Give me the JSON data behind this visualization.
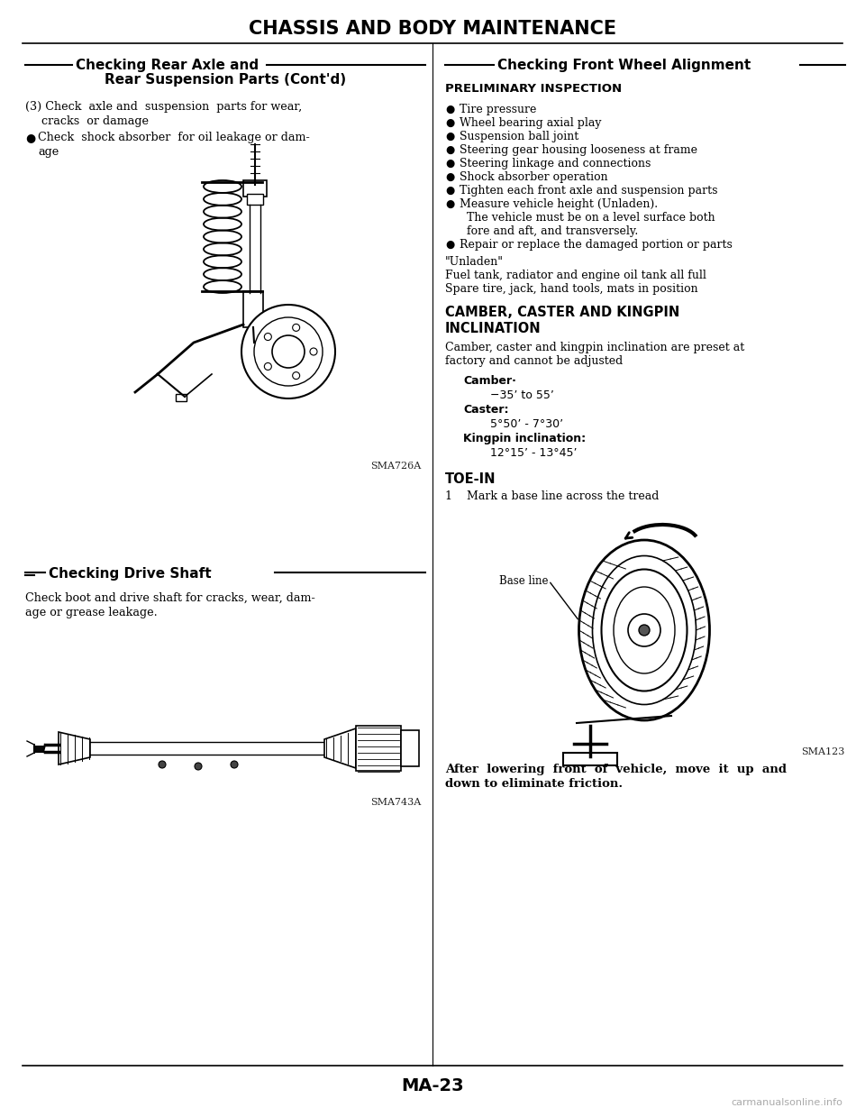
{
  "title": "CHASSIS AND BODY MAINTENANCE",
  "page_num": "MA-23",
  "watermark": "carmanualsonline.info",
  "bg_color": "#ffffff",
  "text_color": "#000000",
  "left_col": {
    "section_header_line1": "Checking Rear Axle and",
    "section_header_line2": "Rear Suspension Parts (Cont'd)",
    "fig1_caption": "SMA726A",
    "section2_header": "Checking Drive Shaft",
    "section2_body1": "Check boot and drive shaft for cracks, wear, dam-",
    "section2_body2": "age or grease leakage.",
    "fig2_caption": "SMA743A"
  },
  "right_col": {
    "section_header": "Checking Front Wheel Alignment",
    "subsection1": "PRELIMINARY INSPECTION",
    "prelim_items": [
      "Tire pressure",
      "Wheel bearing axial play",
      "Suspension ball joint",
      "Steering gear housing looseness at frame",
      "Steering linkage and connections",
      "Shock absorber operation",
      "Tighten each front axle and suspension parts",
      "Measure vehicle height (Unladen).",
      "  The vehicle must be on a level surface both",
      "  fore and aft, and transversely.",
      "Repair or replace the damaged portion or parts"
    ],
    "prelim_bullet_flags": [
      true,
      true,
      true,
      true,
      true,
      true,
      true,
      true,
      false,
      false,
      true
    ],
    "unladen_line1": "\"Unladen\"",
    "unladen_line2": "Fuel tank, radiator and engine oil tank all full",
    "unladen_line3": "Spare tire, jack, hand tools, mats in position",
    "subsection2_line1": "CAMBER, CASTER AND KINGPIN",
    "subsection2_line2": "INCLINATION",
    "camber_caster_text1": "Camber, caster and kingpin inclination are preset at",
    "camber_caster_text2": "factory and cannot be adjusted",
    "camber_label": "Camber·",
    "camber_value": "−35’ to 55’",
    "caster_label": "Caster:",
    "caster_value": "5°50’ - 7°30’",
    "kingpin_label": "Kingpin inclination:",
    "kingpin_value": "12°15’ - 13°45’",
    "subsection3": "TOE-IN",
    "toein_text": "1    Mark a base line across the tread",
    "baseline_label": "Base line",
    "fig3_caption": "SMA123",
    "toein_note1": "After  lowering  front  of  vehicle,  move  it  up  and",
    "toein_note2": "down to eliminate friction."
  }
}
